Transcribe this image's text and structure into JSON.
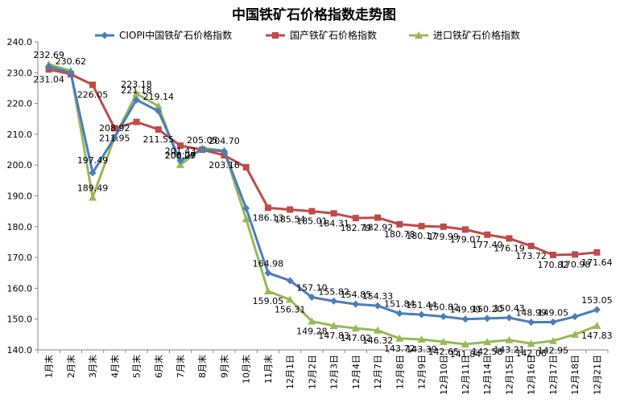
{
  "chart_data": {
    "type": "line",
    "title": "中国铁矿石价格指数走势图",
    "xlabel": "",
    "ylabel": "",
    "ylim": [
      140,
      240
    ],
    "yticks": [
      "140.0",
      "150.0",
      "160.0",
      "170.0",
      "180.0",
      "190.0",
      "200.0",
      "210.0",
      "220.0",
      "230.0",
      "240.0"
    ],
    "grid": false,
    "legend_position": "top",
    "categories": [
      "1月末",
      "2月末",
      "3月末",
      "4月末",
      "5月末",
      "6月末",
      "7月末",
      "8月末",
      "9月末",
      "10月末",
      "11月末",
      "12月1日",
      "12月2日",
      "12月3日",
      "12月4日",
      "12月7日",
      "12月8日",
      "12月9日",
      "12月10日",
      "12月11日",
      "12月14日",
      "12月15日",
      "12月16日",
      "12月17日",
      "12月18日",
      "12月21日"
    ],
    "series": [
      {
        "name": "CIOPI中国铁矿石价格指数",
        "color": "#4a7ebb",
        "marker": "diamond",
        "values": [
          232.0,
          230.0,
          197.49,
          208.92,
          221.18,
          217.5,
          201.43,
          205.05,
          204.5,
          186.0,
          164.98,
          162.5,
          157.1,
          155.82,
          154.85,
          154.33,
          151.84,
          151.44,
          150.82,
          149.99,
          150.2,
          150.43,
          148.99,
          149.05,
          150.8,
          153.05
        ],
        "labels": [
          "",
          "",
          "197.49",
          "208.92",
          "221.18",
          "",
          "201.43",
          "205.05",
          "",
          "",
          "164.98",
          "",
          "157.10",
          "155.82",
          "154.85",
          "154.33",
          "151.84",
          "151.44",
          "150.82",
          "149.99",
          "150.20",
          "150.43",
          "148.99",
          "149.05",
          "",
          "153.05"
        ]
      },
      {
        "name": "国产铁矿石价格指数",
        "color": "#be4b48",
        "marker": "square",
        "values": [
          231.04,
          229.5,
          226.05,
          211.95,
          214.0,
          211.55,
          206.29,
          205.0,
          203.16,
          199.3,
          186.13,
          185.54,
          185.01,
          184.31,
          182.79,
          182.92,
          180.78,
          180.17,
          179.99,
          179.07,
          177.4,
          176.19,
          173.72,
          170.82,
          170.98,
          171.64
        ],
        "labels": [
          "231.04",
          "",
          "226.05",
          "211.95",
          "",
          "211.55",
          "206.29",
          "",
          "203.16",
          "",
          "186.13",
          "185.54",
          "185.01",
          "184.31",
          "182.79",
          "182.92",
          "180.78",
          "180.17",
          "179.99",
          "179.07",
          "177.40",
          "176.19",
          "173.72",
          "170.82",
          "170.98",
          "171.64"
        ]
      },
      {
        "name": "进口铁矿石价格指数",
        "color": "#98b954",
        "marker": "triangle",
        "values": [
          232.69,
          230.62,
          189.49,
          209.0,
          223.18,
          219.14,
          200.07,
          205.5,
          204.7,
          182.5,
          159.05,
          156.31,
          149.28,
          147.83,
          147.02,
          146.32,
          143.72,
          143.39,
          142.65,
          141.84,
          142.58,
          143.21,
          142.06,
          142.95,
          145.0,
          147.83
        ],
        "labels": [
          "232.69",
          "230.62",
          "189.49",
          "",
          "223.18",
          "219.14",
          "200.07",
          "",
          "204.70",
          "",
          "159.05",
          "156.31",
          "149.28",
          "147.83",
          "147.02",
          "146.32",
          "143.72",
          "143.39",
          "142.65",
          "141.84",
          "142.58",
          "143.21",
          "142.06",
          "142.95",
          "",
          "147.83"
        ]
      }
    ]
  }
}
